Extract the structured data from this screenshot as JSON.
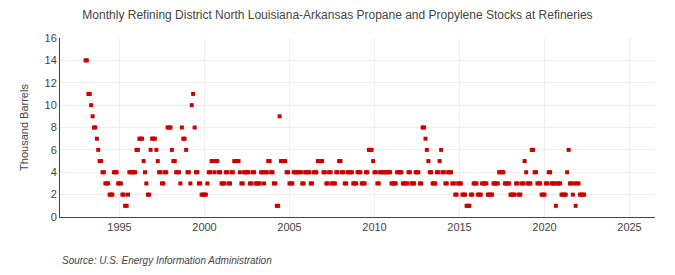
{
  "chart_data": {
    "type": "scatter",
    "title": "Monthly Refining District North Louisiana-Arkansas Propane and Propylene Stocks at Refineries",
    "ylabel": "Thousand Barrels",
    "annotations": [
      "Source: U.S. Energy Information Administration"
    ],
    "color": "#cc0000",
    "marker": "square",
    "grid": true,
    "xlim": [
      1991.5,
      2026.5
    ],
    "ylim": [
      0,
      16
    ],
    "xticks": [
      1995,
      2000,
      2005,
      2010,
      2015,
      2020,
      2025
    ],
    "yticks": [
      0,
      2,
      4,
      6,
      8,
      10,
      12,
      14,
      16
    ],
    "x": [
      1993.0,
      1993.08,
      1993.17,
      1993.25,
      1993.33,
      1993.42,
      1993.5,
      1993.58,
      1993.67,
      1993.75,
      1993.83,
      1993.92,
      1994.0,
      1994.08,
      1994.17,
      1994.25,
      1994.33,
      1994.42,
      1994.5,
      1994.58,
      1994.67,
      1994.75,
      1994.83,
      1994.92,
      1995.0,
      1995.08,
      1995.17,
      1995.25,
      1995.33,
      1995.42,
      1995.5,
      1995.58,
      1995.67,
      1995.75,
      1995.83,
      1995.92,
      1996.0,
      1996.08,
      1996.17,
      1996.25,
      1996.33,
      1996.42,
      1996.5,
      1996.58,
      1996.67,
      1996.75,
      1996.83,
      1996.92,
      1997.0,
      1997.08,
      1997.17,
      1997.25,
      1997.33,
      1997.42,
      1997.5,
      1997.58,
      1997.67,
      1997.75,
      1997.83,
      1997.92,
      1998.0,
      1998.08,
      1998.17,
      1998.25,
      1998.33,
      1998.42,
      1998.5,
      1998.58,
      1998.67,
      1998.75,
      1998.83,
      1998.92,
      1999.0,
      1999.08,
      1999.17,
      1999.25,
      1999.33,
      1999.42,
      1999.5,
      1999.58,
      1999.67,
      1999.75,
      1999.83,
      1999.92,
      2000.0,
      2000.08,
      2000.17,
      2000.25,
      2000.33,
      2000.42,
      2000.5,
      2000.58,
      2000.67,
      2000.75,
      2000.83,
      2000.92,
      2001.0,
      2001.08,
      2001.17,
      2001.25,
      2001.33,
      2001.42,
      2001.5,
      2001.58,
      2001.67,
      2001.75,
      2001.83,
      2001.92,
      2002.0,
      2002.08,
      2002.17,
      2002.25,
      2002.33,
      2002.42,
      2002.5,
      2002.58,
      2002.67,
      2002.75,
      2002.83,
      2002.92,
      2003.0,
      2003.08,
      2003.17,
      2003.25,
      2003.33,
      2003.42,
      2003.5,
      2003.58,
      2003.67,
      2003.75,
      2003.83,
      2003.92,
      2004.0,
      2004.08,
      2004.17,
      2004.25,
      2004.33,
      2004.42,
      2004.5,
      2004.58,
      2004.67,
      2004.75,
      2004.83,
      2004.92,
      2005.0,
      2005.08,
      2005.17,
      2005.25,
      2005.33,
      2005.42,
      2005.5,
      2005.58,
      2005.67,
      2005.75,
      2005.83,
      2005.92,
      2006.0,
      2006.08,
      2006.17,
      2006.25,
      2006.33,
      2006.42,
      2006.5,
      2006.58,
      2006.67,
      2006.75,
      2006.83,
      2006.92,
      2007.0,
      2007.08,
      2007.17,
      2007.25,
      2007.33,
      2007.42,
      2007.5,
      2007.58,
      2007.67,
      2007.75,
      2007.83,
      2007.92,
      2008.0,
      2008.08,
      2008.17,
      2008.25,
      2008.33,
      2008.42,
      2008.5,
      2008.58,
      2008.67,
      2008.75,
      2008.83,
      2008.92,
      2009.0,
      2009.08,
      2009.17,
      2009.25,
      2009.33,
      2009.42,
      2009.5,
      2009.58,
      2009.67,
      2009.75,
      2009.83,
      2009.92,
      2010.0,
      2010.08,
      2010.17,
      2010.25,
      2010.33,
      2010.42,
      2010.5,
      2010.58,
      2010.67,
      2010.75,
      2010.83,
      2010.92,
      2011.0,
      2011.08,
      2011.17,
      2011.25,
      2011.33,
      2011.42,
      2011.5,
      2011.58,
      2011.67,
      2011.75,
      2011.83,
      2011.92,
      2012.0,
      2012.08,
      2012.17,
      2012.25,
      2012.33,
      2012.42,
      2012.5,
      2012.58,
      2012.67,
      2012.75,
      2012.83,
      2012.92,
      2013.0,
      2013.08,
      2013.17,
      2013.25,
      2013.33,
      2013.42,
      2013.5,
      2013.58,
      2013.67,
      2013.75,
      2013.83,
      2013.92,
      2014.0,
      2014.08,
      2014.17,
      2014.25,
      2014.33,
      2014.42,
      2014.5,
      2014.58,
      2014.67,
      2014.75,
      2014.83,
      2014.92,
      2015.0,
      2015.08,
      2015.17,
      2015.25,
      2015.33,
      2015.42,
      2015.5,
      2015.58,
      2015.67,
      2015.75,
      2015.83,
      2015.92,
      2016.0,
      2016.08,
      2016.17,
      2016.25,
      2016.33,
      2016.42,
      2016.5,
      2016.58,
      2016.67,
      2016.75,
      2016.83,
      2016.92,
      2017.0,
      2017.08,
      2017.17,
      2017.25,
      2017.33,
      2017.42,
      2017.5,
      2017.58,
      2017.67,
      2017.75,
      2017.83,
      2017.92,
      2018.0,
      2018.08,
      2018.17,
      2018.25,
      2018.33,
      2018.42,
      2018.5,
      2018.58,
      2018.67,
      2018.75,
      2018.83,
      2018.92,
      2019.0,
      2019.08,
      2019.17,
      2019.25,
      2019.33,
      2019.42,
      2019.5,
      2019.58,
      2019.67,
      2019.75,
      2019.83,
      2019.92,
      2020.0,
      2020.08,
      2020.17,
      2020.25,
      2020.33,
      2020.42,
      2020.5,
      2020.58,
      2020.67,
      2020.75,
      2020.83,
      2020.92,
      2021.0,
      2021.08,
      2021.17,
      2021.25,
      2021.33,
      2021.42,
      2021.5,
      2021.58,
      2021.67,
      2021.75,
      2021.83,
      2021.92,
      2022.0,
      2022.08,
      2022.17,
      2022.25,
      2022.33
    ],
    "values": [
      14,
      14,
      11,
      11,
      10,
      9,
      8,
      8,
      7,
      6,
      5,
      5,
      4,
      4,
      3,
      3,
      3,
      2,
      2,
      2,
      4,
      4,
      4,
      3,
      3,
      3,
      2,
      2,
      1,
      1,
      2,
      4,
      4,
      4,
      4,
      4,
      6,
      6,
      7,
      7,
      7,
      5,
      4,
      3,
      2,
      2,
      6,
      7,
      7,
      7,
      6,
      5,
      4,
      4,
      3,
      3,
      4,
      4,
      8,
      8,
      8,
      6,
      5,
      5,
      4,
      4,
      4,
      3,
      8,
      7,
      7,
      6,
      4,
      4,
      3,
      10,
      11,
      8,
      4,
      4,
      3,
      3,
      2,
      2,
      2,
      2,
      3,
      4,
      4,
      5,
      5,
      4,
      5,
      5,
      4,
      4,
      3,
      3,
      3,
      4,
      4,
      3,
      3,
      4,
      4,
      5,
      5,
      5,
      5,
      4,
      3,
      3,
      4,
      4,
      4,
      4,
      3,
      3,
      4,
      4,
      3,
      3,
      3,
      3,
      4,
      4,
      3,
      4,
      4,
      5,
      5,
      4,
      4,
      3,
      3,
      1,
      1,
      9,
      5,
      5,
      5,
      5,
      4,
      4,
      3,
      3,
      3,
      4,
      4,
      4,
      4,
      4,
      4,
      3,
      3,
      4,
      4,
      4,
      4,
      3,
      3,
      4,
      4,
      4,
      5,
      5,
      5,
      5,
      4,
      4,
      3,
      3,
      4,
      4,
      3,
      3,
      3,
      4,
      4,
      5,
      5,
      4,
      4,
      3,
      3,
      4,
      4,
      4,
      4,
      3,
      3,
      3,
      4,
      4,
      4,
      3,
      3,
      3,
      4,
      4,
      6,
      6,
      6,
      5,
      4,
      4,
      3,
      3,
      4,
      4,
      4,
      4,
      4,
      4,
      4,
      4,
      3,
      3,
      3,
      3,
      4,
      4,
      4,
      4,
      3,
      3,
      3,
      3,
      4,
      4,
      3,
      3,
      3,
      4,
      4,
      4,
      3,
      3,
      8,
      8,
      7,
      6,
      5,
      4,
      4,
      3,
      3,
      3,
      4,
      4,
      5,
      6,
      4,
      4,
      3,
      3,
      4,
      4,
      4,
      3,
      3,
      2,
      2,
      3,
      3,
      3,
      2,
      2,
      2,
      1,
      1,
      1,
      2,
      2,
      3,
      3,
      3,
      2,
      2,
      2,
      3,
      3,
      3,
      3,
      2,
      2,
      2,
      2,
      3,
      3,
      3,
      3,
      4,
      4,
      4,
      4,
      3,
      3,
      3,
      3,
      2,
      2,
      2,
      2,
      3,
      3,
      2,
      2,
      3,
      3,
      5,
      4,
      3,
      3,
      3,
      6,
      6,
      4,
      4,
      3,
      3,
      3,
      2,
      2,
      2,
      3,
      3,
      4,
      4,
      3,
      3,
      3,
      1,
      3,
      3,
      3,
      2,
      2,
      2,
      2,
      4,
      6,
      3,
      3,
      2,
      3,
      1,
      3,
      3,
      2,
      2,
      2,
      2
    ]
  }
}
